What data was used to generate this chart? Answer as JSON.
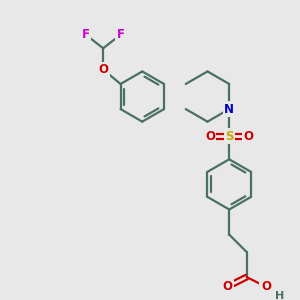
{
  "background_color": "#e8e8e8",
  "bond_color": "#4a7060",
  "atom_colors": {
    "F": "#cc00cc",
    "O": "#cc0000",
    "N": "#0000cc",
    "S": "#ccaa00",
    "H": "#4a7060"
  },
  "figsize": [
    3.0,
    3.0
  ],
  "dpi": 100,
  "lw": 1.6
}
